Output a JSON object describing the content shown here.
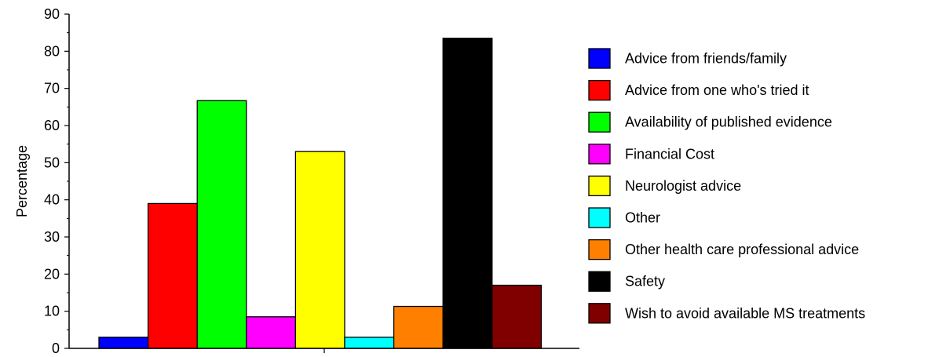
{
  "chart_data": {
    "type": "bar",
    "title": "",
    "xlabel": "",
    "ylabel": "Percentage",
    "ylim": [
      0,
      90
    ],
    "yticks": [
      0,
      10,
      20,
      30,
      40,
      50,
      60,
      70,
      80,
      90
    ],
    "grid": false,
    "legend_position": "right",
    "series": [
      {
        "name": "Advice from friends/family",
        "value": 3,
        "color": "#0000FF"
      },
      {
        "name": "Advice from one who's tried it",
        "value": 39,
        "color": "#FF0000"
      },
      {
        "name": "Availability of published evidence",
        "value": 66.7,
        "color": "#00FF00"
      },
      {
        "name": "Financial Cost",
        "value": 8.5,
        "color": "#FF00FF"
      },
      {
        "name": "Neurologist advice",
        "value": 53,
        "color": "#FFFF00"
      },
      {
        "name": "Other",
        "value": 3,
        "color": "#00FFFF"
      },
      {
        "name": "Other health care professional advice",
        "value": 11.3,
        "color": "#FF8000"
      },
      {
        "name": "Safety",
        "value": 83.5,
        "color": "#000000"
      },
      {
        "name": "Wish to avoid available MS treatments",
        "value": 17,
        "color": "#800000"
      }
    ]
  }
}
